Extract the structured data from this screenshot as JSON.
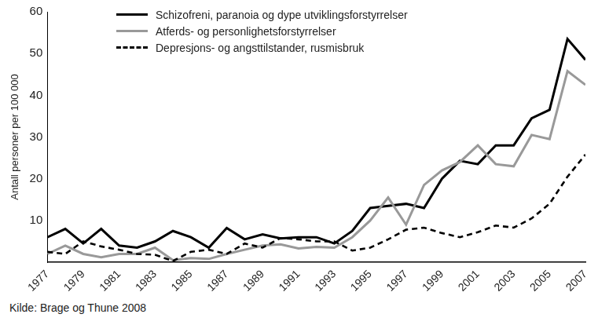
{
  "chart_data": {
    "type": "line",
    "y_label": "Antall personer per 100 000",
    "caption": "Kilde: Brage og Thune 2008",
    "x": [
      1977,
      1978,
      1979,
      1980,
      1981,
      1982,
      1983,
      1984,
      1985,
      1986,
      1987,
      1988,
      1989,
      1990,
      1991,
      1992,
      1993,
      1994,
      1995,
      1996,
      1997,
      1998,
      1999,
      2000,
      2001,
      2002,
      2003,
      2004,
      2005,
      2006,
      2007
    ],
    "xlim": [
      1977,
      2007
    ],
    "xticks": [
      1977,
      1979,
      1981,
      1983,
      1985,
      1987,
      1989,
      1991,
      1993,
      1995,
      1997,
      1999,
      2001,
      2003,
      2005,
      2007
    ],
    "ylim": [
      0,
      60
    ],
    "yticks": [
      10,
      20,
      30,
      40,
      50,
      60
    ],
    "grid": false,
    "legend": "upper left",
    "series": [
      {
        "name": "Schizofreni, paranoia og dype utviklingsforstyrrelser",
        "color": "#000000",
        "line_style": "solid",
        "values": [
          6,
          8,
          4.5,
          8,
          4,
          3.5,
          5,
          7.5,
          6,
          3.5,
          8.2,
          5.5,
          6.7,
          5.7,
          6,
          6,
          4.5,
          7.5,
          13,
          13.5,
          14,
          13,
          20,
          24.3,
          23.5,
          28,
          28,
          34.5,
          36.5,
          53.5,
          48.5
        ]
      },
      {
        "name": "Atferds- og personlighetsforstyrrelser",
        "color": "#999999",
        "line_style": "solid",
        "values": [
          2,
          4,
          2,
          1.2,
          2,
          2,
          3.5,
          0.5,
          1,
          0.8,
          2,
          3,
          4,
          4.3,
          3.3,
          3.7,
          3.5,
          6,
          10,
          15.5,
          9,
          18.5,
          22,
          24,
          28,
          23.5,
          23,
          30.5,
          29.5,
          45.8,
          42.5
        ]
      },
      {
        "name": "Depresjons- og angsttilstander, rusmisbruk",
        "color": "#000000",
        "line_style": "dashed",
        "values": [
          2.5,
          2,
          5,
          3.8,
          3,
          2,
          1.8,
          0.3,
          2.5,
          3,
          2,
          4.5,
          3.5,
          5.8,
          5.5,
          5,
          5,
          2.8,
          3.5,
          5.5,
          7.8,
          8.3,
          7,
          6,
          7.2,
          8.8,
          8.3,
          10.5,
          14,
          20.5,
          25.8
        ]
      }
    ]
  }
}
